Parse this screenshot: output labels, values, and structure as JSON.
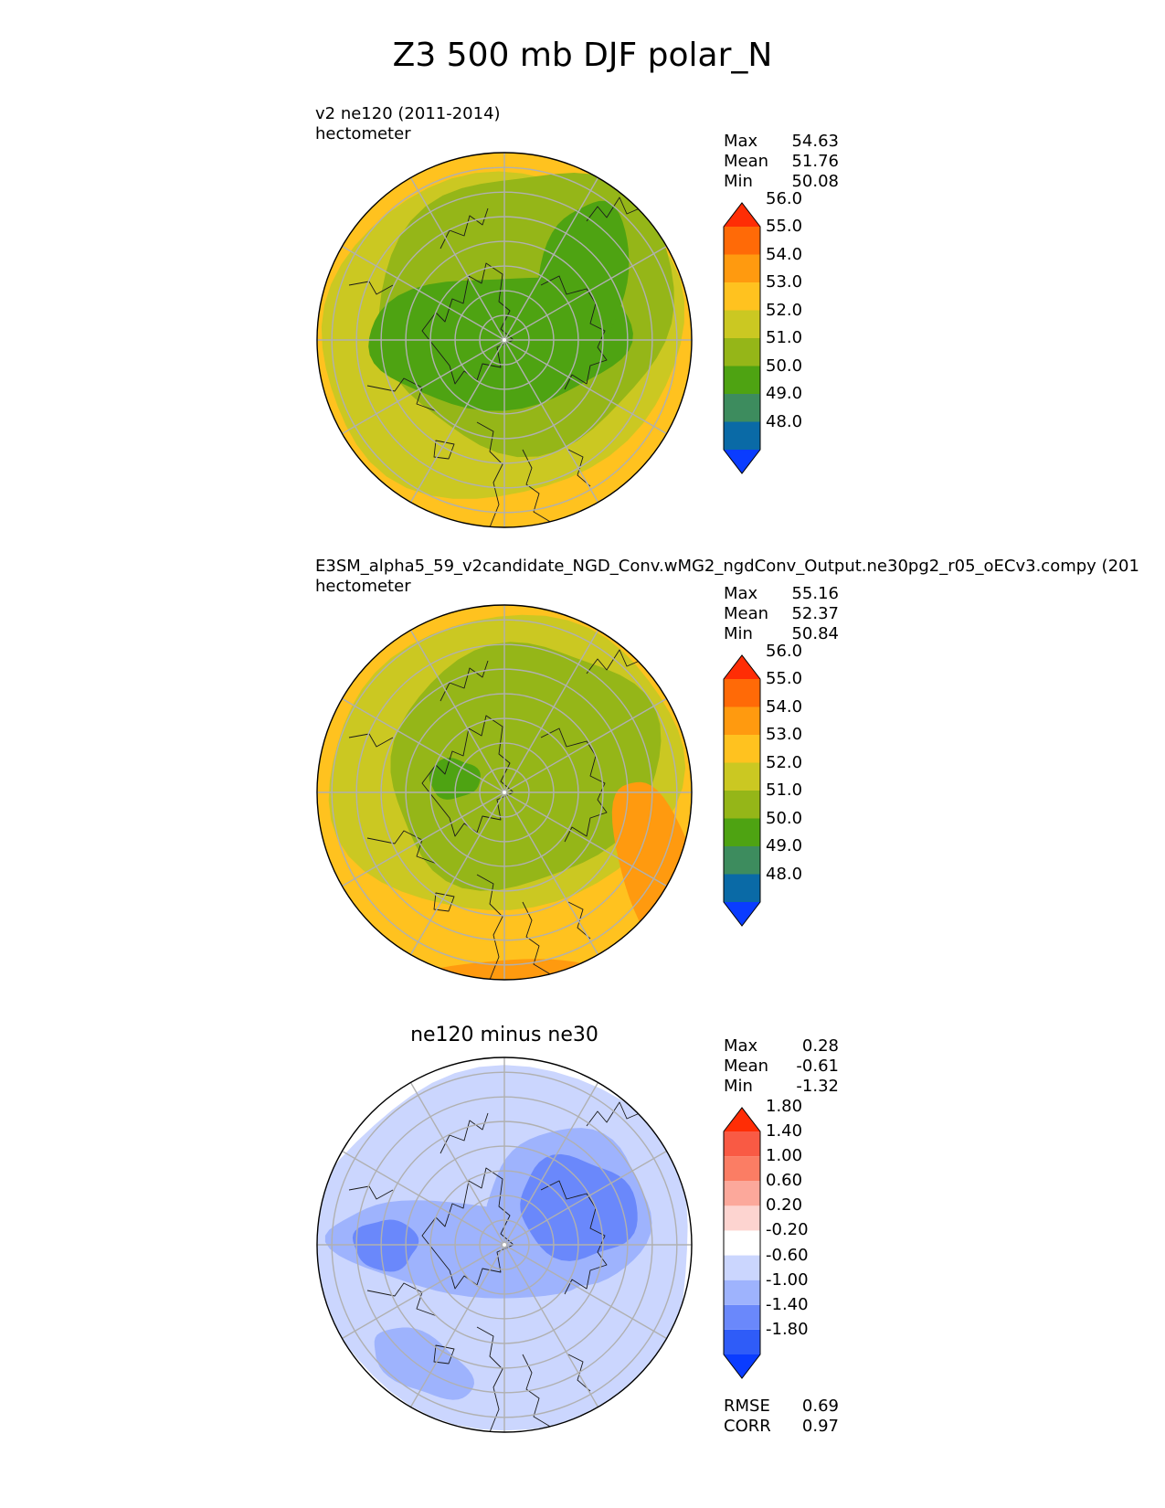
{
  "title": "Z3 500 mb DJF polar_N",
  "colors": {
    "z_levels": [
      "#0a3cff",
      "#0a6aa6",
      "#3d8c5e",
      "#4ea312",
      "#95b618",
      "#cbc822",
      "#ffc21f",
      "#ff9a0f",
      "#ff6a07",
      "#ff2d05"
    ],
    "diff_levels": [
      "#0a3cff",
      "#2f5cf8",
      "#6a88fb",
      "#9eb3fd",
      "#cbd6fe",
      "#ffffff",
      "#fdd4d0",
      "#fca89b",
      "#fb7d64",
      "#f95a44",
      "#ff2d05"
    ]
  },
  "panels": [
    {
      "title_line1": "v2 ne120 (2011-2014)",
      "title_line2": "hectometer",
      "stats": [
        {
          "label": "Max",
          "value": "54.63"
        },
        {
          "label": "Mean",
          "value": "51.76"
        },
        {
          "label": "Min",
          "value": "50.08"
        }
      ]
    },
    {
      "title_line1": "E3SM_alpha5_59_v2candidate_NGD_Conv.wMG2_ngdConv_Output.ne30pg2_r05_oECv3.compy (201",
      "title_line2": "hectometer",
      "stats": [
        {
          "label": "Max",
          "value": "55.16"
        },
        {
          "label": "Mean",
          "value": "52.37"
        },
        {
          "label": "Min",
          "value": "50.84"
        }
      ]
    },
    {
      "title": "ne120 minus ne30",
      "stats": [
        {
          "label": "Max",
          "value": "0.28"
        },
        {
          "label": "Mean",
          "value": "-0.61"
        },
        {
          "label": "Min",
          "value": "-1.32"
        }
      ],
      "metrics": [
        {
          "label": "RMSE",
          "value": "0.69"
        },
        {
          "label": "CORR",
          "value": "0.97"
        }
      ]
    }
  ],
  "chart_data": [
    {
      "type": "polar_contourf",
      "projection": "north polar stereographic",
      "variable": "Z3 500 mb DJF",
      "title": "v2 ne120 (2011-2014)",
      "units": "hectometer",
      "max": 54.63,
      "mean": 51.76,
      "min": 50.08,
      "colorbar": {
        "levels": [
          48.0,
          49.0,
          50.0,
          51.0,
          52.0,
          53.0,
          54.0,
          55.0,
          56.0
        ],
        "tick_labels": [
          "48.0",
          "49.0",
          "50.0",
          "51.0",
          "52.0",
          "53.0",
          "54.0",
          "55.0",
          "56.0"
        ],
        "extend": "both"
      },
      "field": [
        {
          "level": 52.0,
          "band": "51-52"
        },
        {
          "level": 51.0,
          "band": "50-51"
        }
      ]
    },
    {
      "type": "polar_contourf",
      "projection": "north polar stereographic",
      "variable": "Z3 500 mb DJF",
      "title": "E3SM_alpha5_59_v2candidate_NGD_Conv.wMG2_ngdConv_Output.ne30pg2_r05_oECv3.compy (201",
      "units": "hectometer",
      "max": 55.16,
      "mean": 52.37,
      "min": 50.84,
      "colorbar": {
        "levels": [
          48.0,
          49.0,
          50.0,
          51.0,
          52.0,
          53.0,
          54.0,
          55.0,
          56.0
        ],
        "tick_labels": [
          "48.0",
          "49.0",
          "50.0",
          "51.0",
          "52.0",
          "53.0",
          "54.0",
          "55.0",
          "56.0"
        ],
        "extend": "both"
      }
    },
    {
      "type": "polar_contourf",
      "projection": "north polar stereographic",
      "title": "ne120 minus ne30",
      "max": 0.28,
      "mean": -0.61,
      "min": -1.32,
      "rmse": 0.69,
      "corr": 0.97,
      "colorbar": {
        "levels": [
          -1.8,
          -1.4,
          -1.0,
          -0.6,
          -0.2,
          0.2,
          0.6,
          1.0,
          1.4,
          1.8
        ],
        "tick_labels": [
          "-1.80",
          "-1.40",
          "-1.00",
          "-0.60",
          "-0.20",
          "0.20",
          "0.60",
          "1.00",
          "1.40",
          "1.80"
        ],
        "extend": "both"
      }
    }
  ]
}
